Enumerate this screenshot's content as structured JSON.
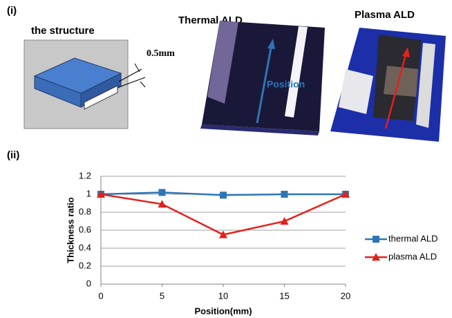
{
  "panel_labels": [
    "(i)",
    "(ii)"
  ],
  "structure": {
    "title": "the structure",
    "dimension": "0.5mm"
  },
  "photos": [
    {
      "title": "Thermal ALD",
      "arrow_label": "Position"
    },
    {
      "title": "Plasma ALD"
    }
  ],
  "chart_data": {
    "type": "line",
    "x": [
      0,
      5,
      10,
      15,
      20
    ],
    "xlabel": "Position(mm)",
    "ylabel": "Thickness ratio",
    "series": [
      {
        "name": "thermal ALD",
        "color": "#2e75b6",
        "marker": "square",
        "values": [
          1.0,
          1.02,
          0.99,
          1.0,
          1.0
        ]
      },
      {
        "name": "plasma ALD",
        "color": "#e3211c",
        "marker": "triangle",
        "values": [
          1.0,
          0.89,
          0.55,
          0.7,
          1.0
        ]
      }
    ],
    "xlim": [
      0,
      20
    ],
    "xticks": [
      0,
      5,
      10,
      15,
      20
    ],
    "ylim": [
      0,
      1.2
    ],
    "yticks": [
      0,
      0.2,
      0.4,
      0.6,
      0.8,
      1,
      1.2
    ],
    "grid": true,
    "legend": "right"
  }
}
